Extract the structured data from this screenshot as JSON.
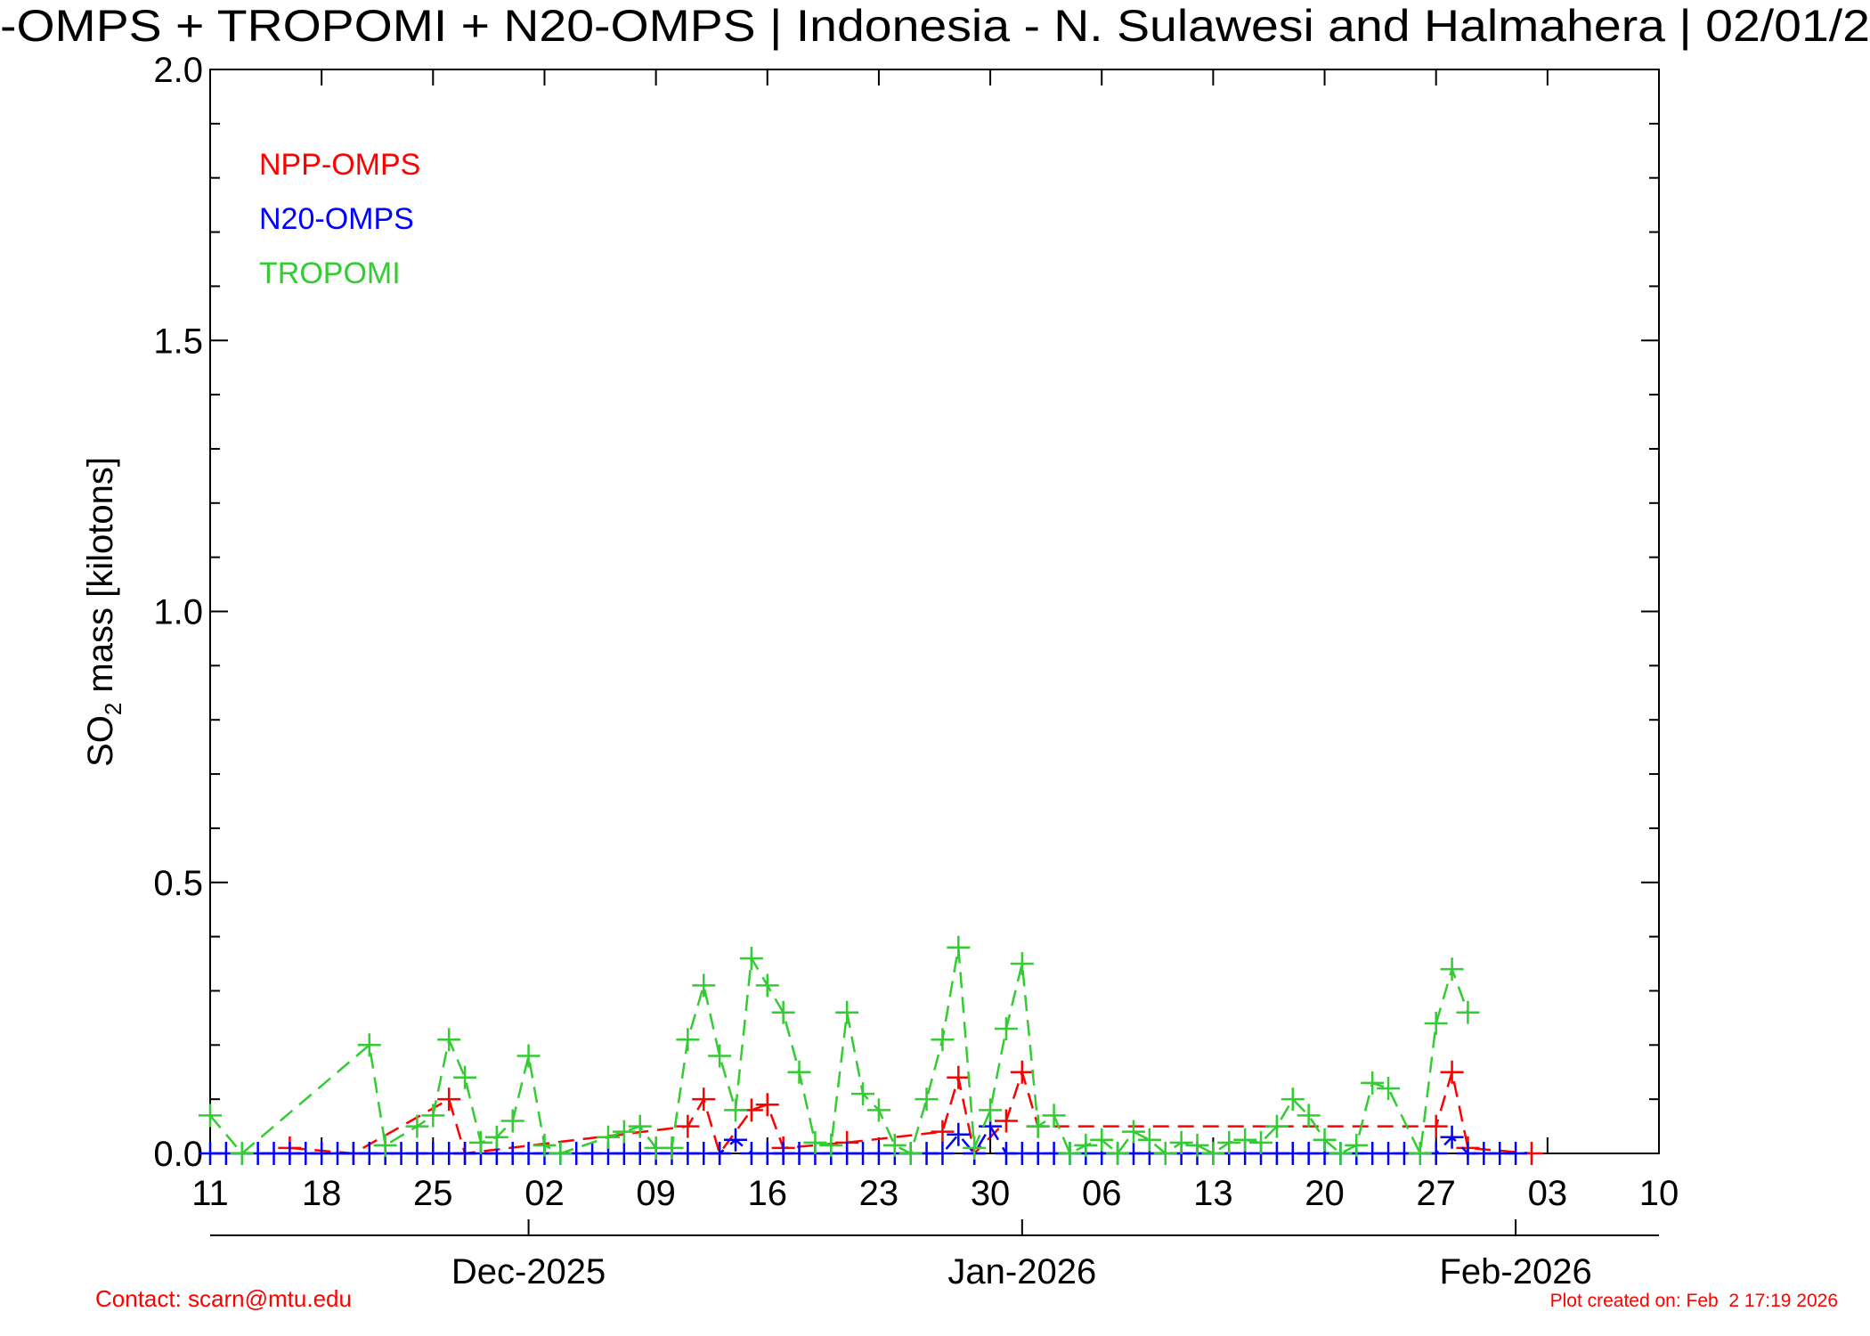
{
  "chart_data": {
    "type": "line",
    "title": "-OMPS + TROPOMI + N20-OMPS | Indonesia - N. Sulawesi and Halmahera | 02/01/2",
    "ylabel": {
      "main": "SO",
      "sub": "2",
      "rest": " mass [kilotons]"
    },
    "xlim": [
      "2025-11-11",
      "2026-02-10"
    ],
    "xticks": [
      {
        "value": "2025-11-11",
        "label": "11"
      },
      {
        "value": "2025-11-18",
        "label": "18"
      },
      {
        "value": "2025-11-25",
        "label": "25"
      },
      {
        "value": "2025-12-02",
        "label": "02"
      },
      {
        "value": "2025-12-09",
        "label": "09"
      },
      {
        "value": "2025-12-16",
        "label": "16"
      },
      {
        "value": "2025-12-23",
        "label": "23"
      },
      {
        "value": "2025-12-30",
        "label": "30"
      },
      {
        "value": "2026-01-06",
        "label": "06"
      },
      {
        "value": "2026-01-13",
        "label": "13"
      },
      {
        "value": "2026-01-20",
        "label": "20"
      },
      {
        "value": "2026-01-27",
        "label": "27"
      },
      {
        "value": "2026-02-03",
        "label": "03"
      },
      {
        "value": "2026-02-10",
        "label": "10"
      }
    ],
    "month_ticks": [
      {
        "value": "2025-12-01",
        "label": "Dec-2025"
      },
      {
        "value": "2026-01-01",
        "label": "Jan-2026"
      },
      {
        "value": "2026-02-01",
        "label": "Feb-2026"
      }
    ],
    "ylim": [
      0,
      2.0
    ],
    "yticks": [
      {
        "value": 0,
        "label": "0.0"
      },
      0.5,
      {
        "value": 1.0,
        "label": "1.0"
      },
      1.5,
      {
        "value": 2.0,
        "label": "2.0"
      }
    ],
    "yticks_minor": [
      0.1,
      0.2,
      0.3,
      0.4,
      0.6,
      0.7,
      0.8,
      0.9,
      1.1,
      1.2,
      1.3,
      1.4,
      1.6,
      1.7,
      1.8,
      1.9
    ],
    "legend": "upper left",
    "series": [
      {
        "name": "NPP-OMPS",
        "color": "#ff0000",
        "x": [
          "2025-11-16",
          "2025-11-20",
          "2025-11-26",
          "2025-11-27",
          "2025-12-11",
          "2025-12-12",
          "2025-12-13",
          "2025-12-15",
          "2025-12-16",
          "2025-12-17",
          "2025-12-21",
          "2025-12-27",
          "2025-12-28",
          "2025-12-29",
          "2025-12-31",
          "2026-01-01",
          "2026-01-02",
          "2026-01-27",
          "2026-01-28",
          "2026-01-29",
          "2026-02-02"
        ],
        "values": [
          0.01,
          0,
          0.1,
          0,
          0.05,
          0.1,
          0,
          0.08,
          0.09,
          0.01,
          0.02,
          0.04,
          0.14,
          0,
          0.06,
          0.15,
          0.05,
          0.05,
          0.15,
          0.01,
          0
        ]
      },
      {
        "name": "N20-OMPS",
        "color": "#0000ff",
        "x": [
          "2025-11-11",
          "2025-11-12",
          "2025-11-13",
          "2025-11-14",
          "2025-11-15",
          "2025-11-16",
          "2025-11-17",
          "2025-11-18",
          "2025-11-19",
          "2025-11-20",
          "2025-11-21",
          "2025-11-22",
          "2025-11-23",
          "2025-11-24",
          "2025-11-25",
          "2025-11-26",
          "2025-11-27",
          "2025-11-28",
          "2025-11-29",
          "2025-11-30",
          "2025-12-01",
          "2025-12-02",
          "2025-12-03",
          "2025-12-04",
          "2025-12-05",
          "2025-12-06",
          "2025-12-07",
          "2025-12-08",
          "2025-12-09",
          "2025-12-10",
          "2025-12-11",
          "2025-12-12",
          "2025-12-13",
          "2025-12-14",
          "2025-12-15",
          "2025-12-16",
          "2025-12-17",
          "2025-12-18",
          "2025-12-19",
          "2025-12-20",
          "2025-12-21",
          "2025-12-22",
          "2025-12-23",
          "2025-12-24",
          "2025-12-25",
          "2025-12-26",
          "2025-12-27",
          "2025-12-28",
          "2025-12-29",
          "2025-12-30",
          "2025-12-31",
          "2026-01-01",
          "2026-01-02",
          "2026-01-03",
          "2026-01-04",
          "2026-01-05",
          "2026-01-06",
          "2026-01-07",
          "2026-01-08",
          "2026-01-09",
          "2026-01-10",
          "2026-01-11",
          "2026-01-12",
          "2026-01-13",
          "2026-01-14",
          "2026-01-15",
          "2026-01-16",
          "2026-01-17",
          "2026-01-18",
          "2026-01-19",
          "2026-01-20",
          "2026-01-21",
          "2026-01-22",
          "2026-01-23",
          "2026-01-24",
          "2026-01-25",
          "2026-01-26",
          "2026-01-27",
          "2026-01-28",
          "2026-01-29",
          "2026-01-30",
          "2026-01-31",
          "2026-02-01"
        ],
        "values": [
          0,
          0,
          0,
          0,
          0,
          0,
          0,
          0,
          0,
          0,
          0,
          0,
          0,
          0,
          0,
          0,
          0,
          0,
          0,
          0,
          0,
          0,
          0,
          0,
          0,
          0,
          0,
          0,
          0,
          0,
          0,
          0,
          0,
          0.025,
          0,
          0,
          0,
          0,
          0,
          0,
          0,
          0,
          0,
          0,
          0,
          0,
          0,
          0.035,
          0,
          0.05,
          0,
          0,
          0,
          0,
          0,
          0,
          0,
          0,
          0,
          0,
          0,
          0,
          0,
          0,
          0,
          0,
          0,
          0,
          0,
          0,
          0,
          0,
          0,
          0,
          0,
          0,
          0,
          0,
          0.03,
          0,
          0,
          0,
          0
        ]
      },
      {
        "name": "TROPOMI",
        "color": "#33cc33",
        "x": [
          "2025-11-11",
          "2025-11-13",
          "2025-11-21",
          "2025-11-22",
          "2025-11-24",
          "2025-11-25",
          "2025-11-26",
          "2025-11-27",
          "2025-11-28",
          "2025-11-29",
          "2025-11-30",
          "2025-12-01",
          "2025-12-02",
          "2025-12-03",
          "2025-12-06",
          "2025-12-07",
          "2025-12-08",
          "2025-12-09",
          "2025-12-10",
          "2025-12-11",
          "2025-12-12",
          "2025-12-13",
          "2025-12-14",
          "2025-12-15",
          "2025-12-16",
          "2025-12-17",
          "2025-12-18",
          "2025-12-19",
          "2025-12-20",
          "2025-12-21",
          "2025-12-22",
          "2025-12-23",
          "2025-12-24",
          "2025-12-25",
          "2025-12-26",
          "2025-12-27",
          "2025-12-28",
          "2025-12-29",
          "2025-12-30",
          "2025-12-31",
          "2026-01-01",
          "2026-01-02",
          "2026-01-03",
          "2026-01-04",
          "2026-01-05",
          "2026-01-06",
          "2026-01-07",
          "2026-01-08",
          "2026-01-09",
          "2026-01-10",
          "2026-01-11",
          "2026-01-12",
          "2026-01-13",
          "2026-01-14",
          "2026-01-15",
          "2026-01-16",
          "2026-01-17",
          "2026-01-18",
          "2026-01-19",
          "2026-01-20",
          "2026-01-21",
          "2026-01-22",
          "2026-01-23",
          "2026-01-24",
          "2026-01-26",
          "2026-01-27",
          "2026-01-28",
          "2026-01-29"
        ],
        "values": [
          0.07,
          0,
          0.2,
          0.015,
          0.05,
          0.07,
          0.21,
          0.14,
          0.02,
          0.03,
          0.06,
          0.18,
          0.015,
          0,
          0.03,
          0.04,
          0.05,
          0.01,
          0.01,
          0.21,
          0.31,
          0.18,
          0.08,
          0.36,
          0.31,
          0.26,
          0.15,
          0.02,
          0.015,
          0.26,
          0.11,
          0.08,
          0.015,
          0,
          0.1,
          0.21,
          0.38,
          0.01,
          0.08,
          0.23,
          0.35,
          0.05,
          0.07,
          0,
          0.015,
          0.025,
          0,
          0.04,
          0.025,
          0,
          0.02,
          0.015,
          0,
          0.02,
          0.025,
          0.02,
          0.05,
          0.1,
          0.07,
          0.025,
          0,
          0.015,
          0.13,
          0.12,
          0,
          0.24,
          0.34,
          0.26
        ]
      }
    ],
    "contact": "Contact: scarn@mtu.edu",
    "created": "Plot created on: Feb  2 17:19 2026"
  }
}
